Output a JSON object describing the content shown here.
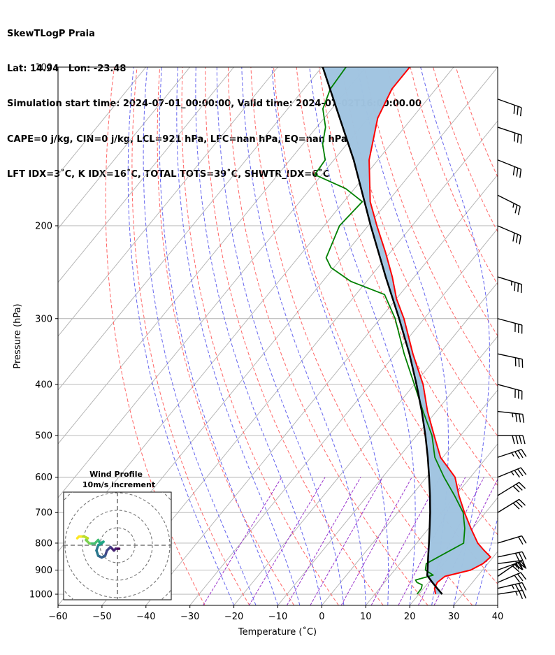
{
  "title_lines": [
    "SkewTLogP Praia",
    "Lat: 14.94   Lon: -23.48",
    "Simulation start time: 2024-07-01_00:00:00, Valid time: 2024-07-02T16:00:00.00",
    "CAPE=0 j/kg, CIN=0 j/kg, LCL=921 hPa, LFC=nan hPa, EQ=nan hPa",
    "LFT IDX=3˚C, K IDX=16˚C, TOTAL TOTS=39˚C, SHWTR_IDX=6˚C"
  ],
  "chart_data": {
    "type": "line",
    "subtype": "skew-t log-p",
    "xlabel": "Temperature (˚C)",
    "ylabel": "Pressure (hPa)",
    "xlim": [
      -60,
      40
    ],
    "ylim": [
      1050,
      100
    ],
    "y_scale": "log",
    "x_ticks": [
      "−60",
      "−50",
      "−40",
      "−30",
      "−20",
      "−10",
      "0",
      "10",
      "20",
      "30",
      "40"
    ],
    "y_ticks": [
      "1000",
      "900",
      "800",
      "700",
      "600",
      "500",
      "400",
      "300",
      "200",
      "100"
    ],
    "grid": true,
    "series": [
      {
        "role": "temperature",
        "color": "#ff0000",
        "points": [
          [
            1000,
            23.8
          ],
          [
            975,
            22.5
          ],
          [
            950,
            22.0
          ],
          [
            925,
            22.6
          ],
          [
            900,
            27.3
          ],
          [
            875,
            28.9
          ],
          [
            850,
            29.4
          ],
          [
            825,
            26.6
          ],
          [
            800,
            23.9
          ],
          [
            750,
            19.6
          ],
          [
            700,
            15.2
          ],
          [
            650,
            10.8
          ],
          [
            600,
            6.5
          ],
          [
            575,
            3.1
          ],
          [
            550,
            -0.5
          ],
          [
            500,
            -6.0
          ],
          [
            450,
            -12.0
          ],
          [
            400,
            -18.0
          ],
          [
            350,
            -26.0
          ],
          [
            300,
            -34.6
          ],
          [
            275,
            -40.0
          ],
          [
            250,
            -45.0
          ],
          [
            225,
            -51.0
          ],
          [
            200,
            -58.0
          ],
          [
            180,
            -64.0
          ],
          [
            150,
            -72.0
          ],
          [
            125,
            -77.8
          ],
          [
            110,
            -80.0
          ],
          [
            100,
            -80.0
          ]
        ]
      },
      {
        "role": "dewpoint",
        "color": "#008000",
        "points": [
          [
            1000,
            19.6
          ],
          [
            975,
            19.5
          ],
          [
            960,
            19.0
          ],
          [
            950,
            17.4
          ],
          [
            940,
            16.6
          ],
          [
            920,
            19.7
          ],
          [
            900,
            17.0
          ],
          [
            875,
            16.0
          ],
          [
            850,
            17.5
          ],
          [
            800,
            20.7
          ],
          [
            750,
            18.2
          ],
          [
            700,
            14.9
          ],
          [
            650,
            9.8
          ],
          [
            600,
            4.0
          ],
          [
            550,
            -1.8
          ],
          [
            500,
            -6.5
          ],
          [
            450,
            -13.0
          ],
          [
            400,
            -20.0
          ],
          [
            350,
            -28.0
          ],
          [
            300,
            -36.6
          ],
          [
            270,
            -43.5
          ],
          [
            255,
            -53.6
          ],
          [
            240,
            -60.7
          ],
          [
            230,
            -63.6
          ],
          [
            200,
            -66.5
          ],
          [
            180,
            -65.8
          ],
          [
            170,
            -72.0
          ],
          [
            160,
            -81.6
          ],
          [
            150,
            -82.0
          ],
          [
            140,
            -85.5
          ],
          [
            130,
            -88.0
          ],
          [
            120,
            -92.0
          ],
          [
            110,
            -94.0
          ],
          [
            100,
            -94.5
          ]
        ]
      },
      {
        "role": "parcel",
        "color": "#000000",
        "points": [
          [
            1000,
            25.3
          ],
          [
            975,
            23.1
          ],
          [
            950,
            20.9
          ],
          [
            921,
            18.4
          ],
          [
            900,
            17.5
          ],
          [
            850,
            15.2
          ],
          [
            800,
            12.8
          ],
          [
            750,
            10.2
          ],
          [
            700,
            7.4
          ],
          [
            650,
            4.2
          ],
          [
            600,
            0.6
          ],
          [
            550,
            -3.4
          ],
          [
            500,
            -8.0
          ],
          [
            450,
            -13.3
          ],
          [
            400,
            -19.5
          ],
          [
            350,
            -26.8
          ],
          [
            300,
            -35.7
          ],
          [
            250,
            -46.5
          ],
          [
            200,
            -59.4
          ],
          [
            150,
            -75.5
          ],
          [
            100,
            -99.8
          ]
        ]
      }
    ],
    "shaded_area": {
      "between": [
        "temperature",
        "parcel"
      ],
      "color": "#a0c4e0"
    },
    "reference_lines": {
      "dry_adiabats_color": "#ff6666",
      "moist_adiabats_color": "#6666ee",
      "mixing_ratio_color": "#9933cc",
      "isotherm_color": "#b0b0b0"
    },
    "wind_barbs": {
      "color": "#000000",
      "barbs": [
        {
          "p": 1000,
          "u": -13,
          "v": -2
        },
        {
          "p": 975,
          "u": -17,
          "v": -4
        },
        {
          "p": 950,
          "u": -14,
          "v": -6
        },
        {
          "p": 925,
          "u": -13,
          "v": -9
        },
        {
          "p": 900,
          "u": -11,
          "v": -4
        },
        {
          "p": 875,
          "u": -15,
          "v": -2
        },
        {
          "p": 850,
          "u": -14,
          "v": -3
        },
        {
          "p": 800,
          "u": -10,
          "v": -3
        },
        {
          "p": 700,
          "u": -13,
          "v": -8
        },
        {
          "p": 650,
          "u": -13,
          "v": -8
        },
        {
          "p": 600,
          "u": -17,
          "v": -7
        },
        {
          "p": 550,
          "u": -18,
          "v": -6
        },
        {
          "p": 500,
          "u": -20,
          "v": 0
        },
        {
          "p": 450,
          "u": -18,
          "v": 2
        },
        {
          "p": 400,
          "u": -15,
          "v": 4
        },
        {
          "p": 350,
          "u": -14,
          "v": 3
        },
        {
          "p": 300,
          "u": -15,
          "v": 4
        },
        {
          "p": 250,
          "u": -16,
          "v": 5
        },
        {
          "p": 200,
          "u": -14,
          "v": 6
        },
        {
          "p": 175,
          "u": -12,
          "v": 6
        },
        {
          "p": 150,
          "u": -15,
          "v": 6
        },
        {
          "p": 130,
          "u": -15,
          "v": 5
        },
        {
          "p": 115,
          "u": -14,
          "v": 5
        }
      ]
    },
    "hodograph": {
      "title": "Wind Profile",
      "subtitle": "10m/s increment",
      "ring_spacing_ms": 10,
      "points": [
        [
          1,
          -2
        ],
        [
          -1,
          -2
        ],
        [
          -2,
          -3
        ],
        [
          -4,
          -1
        ],
        [
          -6,
          -3
        ],
        [
          -7,
          -6
        ],
        [
          -9,
          -7
        ],
        [
          -11,
          -6
        ],
        [
          -12,
          -3
        ],
        [
          -11,
          0
        ],
        [
          -9,
          1
        ],
        [
          -8,
          2
        ],
        [
          -10,
          1
        ],
        [
          -11,
          3
        ],
        [
          -13,
          1
        ],
        [
          -16,
          1
        ],
        [
          -18,
          3
        ],
        [
          -17,
          4
        ],
        [
          -19,
          5
        ],
        [
          -21,
          5
        ],
        [
          -22,
          5
        ],
        [
          -23,
          4
        ]
      ]
    }
  }
}
